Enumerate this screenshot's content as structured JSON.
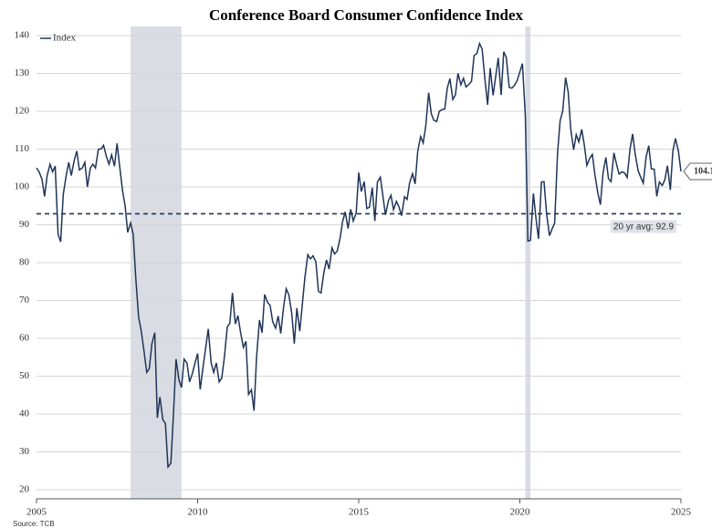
{
  "chart_data": {
    "type": "line",
    "title": "Conference Board Consumer Confidence Index",
    "source": "Source: TCB",
    "x": [
      2005.0,
      2005.08,
      2005.17,
      2005.25,
      2005.33,
      2005.42,
      2005.5,
      2005.58,
      2005.67,
      2005.75,
      2005.83,
      2005.92,
      2006.0,
      2006.08,
      2006.17,
      2006.25,
      2006.33,
      2006.42,
      2006.5,
      2006.58,
      2006.67,
      2006.75,
      2006.83,
      2006.92,
      2007.0,
      2007.08,
      2007.17,
      2007.25,
      2007.33,
      2007.42,
      2007.5,
      2007.58,
      2007.67,
      2007.75,
      2007.83,
      2007.92,
      2008.0,
      2008.08,
      2008.17,
      2008.25,
      2008.33,
      2008.42,
      2008.5,
      2008.58,
      2008.67,
      2008.75,
      2008.83,
      2008.92,
      2009.0,
      2009.08,
      2009.17,
      2009.25,
      2009.33,
      2009.42,
      2009.5,
      2009.58,
      2009.67,
      2009.75,
      2009.83,
      2009.92,
      2010.0,
      2010.08,
      2010.17,
      2010.25,
      2010.33,
      2010.42,
      2010.5,
      2010.58,
      2010.67,
      2010.75,
      2010.83,
      2010.92,
      2011.0,
      2011.08,
      2011.17,
      2011.25,
      2011.33,
      2011.42,
      2011.5,
      2011.58,
      2011.67,
      2011.75,
      2011.83,
      2011.92,
      2012.0,
      2012.08,
      2012.17,
      2012.25,
      2012.33,
      2012.42,
      2012.5,
      2012.58,
      2012.67,
      2012.75,
      2012.83,
      2012.92,
      2013.0,
      2013.08,
      2013.17,
      2013.25,
      2013.33,
      2013.42,
      2013.5,
      2013.58,
      2013.67,
      2013.75,
      2013.83,
      2013.92,
      2014.0,
      2014.08,
      2014.17,
      2014.25,
      2014.33,
      2014.42,
      2014.5,
      2014.58,
      2014.67,
      2014.75,
      2014.83,
      2014.92,
      2015.0,
      2015.08,
      2015.17,
      2015.25,
      2015.33,
      2015.42,
      2015.5,
      2015.58,
      2015.67,
      2015.75,
      2015.83,
      2015.92,
      2016.0,
      2016.08,
      2016.17,
      2016.25,
      2016.33,
      2016.42,
      2016.5,
      2016.58,
      2016.67,
      2016.75,
      2016.83,
      2016.92,
      2017.0,
      2017.08,
      2017.17,
      2017.25,
      2017.33,
      2017.42,
      2017.5,
      2017.58,
      2017.67,
      2017.75,
      2017.83,
      2017.92,
      2018.0,
      2018.08,
      2018.17,
      2018.25,
      2018.33,
      2018.42,
      2018.5,
      2018.58,
      2018.67,
      2018.75,
      2018.83,
      2018.92,
      2019.0,
      2019.08,
      2019.17,
      2019.25,
      2019.33,
      2019.42,
      2019.5,
      2019.58,
      2019.67,
      2019.75,
      2019.83,
      2019.92,
      2020.0,
      2020.08,
      2020.17,
      2020.25,
      2020.33,
      2020.42,
      2020.5,
      2020.58,
      2020.67,
      2020.75,
      2020.83,
      2020.92,
      2021.0,
      2021.08,
      2021.17,
      2021.25,
      2021.33,
      2021.42,
      2021.5,
      2021.58,
      2021.67,
      2021.75,
      2021.83,
      2021.92,
      2022.0,
      2022.08,
      2022.17,
      2022.25,
      2022.33,
      2022.42,
      2022.5,
      2022.58,
      2022.67,
      2022.75,
      2022.83,
      2022.92,
      2023.0,
      2023.08,
      2023.17,
      2023.25,
      2023.33,
      2023.42,
      2023.5,
      2023.58,
      2023.67,
      2023.75,
      2023.83,
      2023.92,
      2024.0,
      2024.08,
      2024.17,
      2024.25,
      2024.33,
      2024.42,
      2024.5,
      2024.58,
      2024.67,
      2024.75,
      2024.83,
      2024.92,
      2025.0
    ],
    "series": [
      {
        "name": "Index",
        "color": "#1f3558",
        "values": [
          105,
          104,
          102,
          97.5,
          103,
          106,
          104,
          105.5,
          87.5,
          85.5,
          98,
          103,
          106.5,
          103,
          107,
          109.5,
          104.5,
          105,
          106.5,
          100,
          105,
          106,
          105,
          110,
          110,
          111,
          108,
          106,
          108.5,
          105.5,
          111.5,
          105.5,
          99,
          95,
          88,
          90.5,
          87.5,
          76,
          65.5,
          62,
          57,
          51,
          52,
          58.5,
          61.5,
          39,
          44.5,
          38.5,
          37.5,
          26,
          27,
          40,
          54.5,
          49,
          47,
          54.5,
          53.5,
          48.5,
          50.5,
          53.5,
          56,
          46.5,
          52.5,
          57.5,
          62.5,
          53.5,
          51,
          53.5,
          48.5,
          49.5,
          55,
          63,
          64,
          72,
          63.8,
          66,
          61.7,
          57.6,
          59.2,
          45.2,
          46.4,
          40.9,
          55.2,
          64.8,
          61.5,
          71.6,
          69.5,
          68.7,
          64.4,
          62.7,
          65.9,
          61.3,
          68.4,
          73.1,
          71.5,
          66.7,
          58.6,
          68,
          61.9,
          69,
          76.2,
          82.1,
          81,
          81.8,
          80.2,
          72.4,
          72,
          77.5,
          80.7,
          78.3,
          83.9,
          82.3,
          83,
          86.4,
          90.9,
          93.4,
          89,
          94.1,
          91,
          93.1,
          103.8,
          98.8,
          101.4,
          94.3,
          94.6,
          99.8,
          91,
          101.3,
          102.6,
          97.6,
          92.6,
          96.3,
          97.8,
          94,
          96.2,
          94.7,
          92.4,
          97.4,
          96.7,
          101.1,
          103.5,
          100.8,
          109.4,
          113.3,
          111.6,
          116.1,
          124.9,
          119.4,
          117.6,
          117.3,
          120,
          120.4,
          120.6,
          126.2,
          128.6,
          123.1,
          124.3,
          130,
          127,
          128.7,
          126.4,
          127.1,
          127.9,
          134.7,
          135.3,
          137.9,
          136.4,
          128.1,
          121.7,
          131.4,
          124.2,
          129.2,
          134.1,
          124.3,
          135.7,
          134.2,
          126.3,
          126.1,
          126.8,
          128.2,
          130.4,
          132.6,
          118.8,
          85.7,
          85.9,
          98.3,
          91.7,
          86.3,
          101.3,
          101.4,
          92.9,
          87.1,
          88.9,
          90.4,
          109,
          117.5,
          120,
          128.9,
          125.1,
          115.2,
          109.8,
          113.8,
          111.9,
          115.2,
          111.1,
          105.7,
          107.6,
          108.6,
          103.2,
          98.4,
          95.3,
          103.6,
          107.8,
          102.2,
          101.4,
          109,
          106,
          103.4,
          104,
          103.7,
          102.5,
          110.1,
          114,
          108.7,
          104.3,
          102.6,
          101,
          108,
          110.9,
          104.8,
          104.7,
          97.5,
          101.3,
          100.4,
          101.9,
          105.6,
          99.2,
          109.6,
          112.8,
          109.5,
          104.1
        ]
      }
    ],
    "last_value_label": "104.1",
    "reference_line": {
      "value": 92.9,
      "label": "20 yr avg: 92.9"
    },
    "shaded_periods": [
      [
        2007.92,
        2009.5
      ],
      [
        2020.17,
        2020.33
      ]
    ],
    "xlim": [
      2005,
      2025
    ],
    "xticks": [
      2005,
      2010,
      2015,
      2020,
      2025
    ],
    "ylim": [
      17.6,
      142.4
    ],
    "yticks": [
      20,
      30,
      40,
      50,
      60,
      70,
      80,
      90,
      100,
      110,
      120,
      130,
      140
    ],
    "grid": true,
    "legend": "top-left"
  }
}
